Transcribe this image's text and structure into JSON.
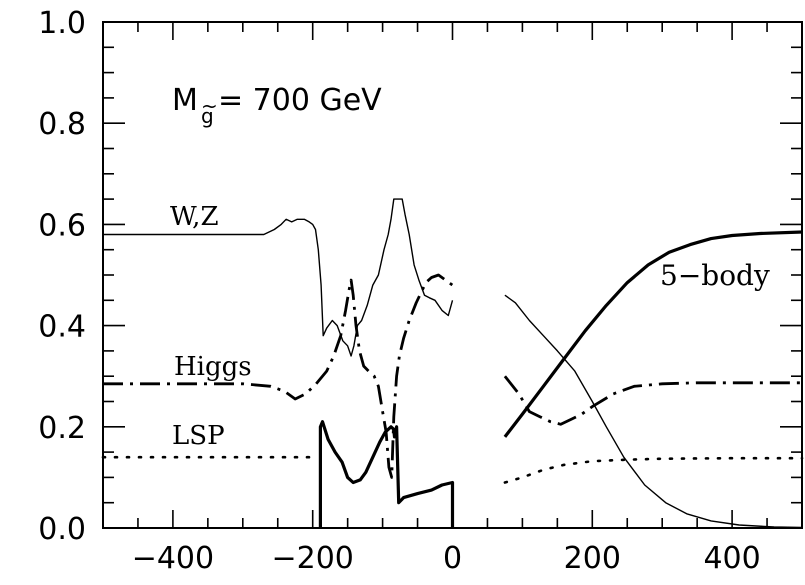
{
  "chart_data": {
    "type": "line",
    "title": "",
    "xlabel": "",
    "ylabel": "",
    "xlim": [
      -500,
      500
    ],
    "ylim": [
      0.0,
      1.0
    ],
    "x_ticks": [
      -400,
      -200,
      0,
      200,
      400
    ],
    "x_tick_labels": [
      "−400",
      "−200",
      "0",
      "200",
      "400"
    ],
    "y_ticks": [
      0.0,
      0.2,
      0.4,
      0.6,
      0.8,
      1.0
    ],
    "y_tick_labels": [
      "0.0",
      "0.2",
      "0.4",
      "0.6",
      "0.8",
      "1.0"
    ],
    "grid": false,
    "annotations": {
      "mass_label_prefix": "M",
      "mass_label_subscript": "g",
      "mass_label_tilde": "~",
      "mass_label_value": "= 700 GeV",
      "wz": "W,Z",
      "higgs": "Higgs",
      "lsp": "LSP",
      "five_body": "5−body"
    },
    "series": [
      {
        "style": "thin-solid",
        "segments": [
          [
            [
              -500,
              0.58
            ],
            [
              -400,
              0.58
            ],
            [
              -300,
              0.58
            ],
            [
              -270,
              0.58
            ],
            [
              -255,
              0.59
            ],
            [
              -245,
              0.6
            ],
            [
              -238,
              0.61
            ],
            [
              -230,
              0.605
            ],
            [
              -222,
              0.61
            ],
            [
              -212,
              0.61
            ],
            [
              -205,
              0.605
            ],
            [
              -200,
              0.6
            ],
            [
              -196,
              0.59
            ],
            [
              -192,
              0.55
            ],
            [
              -188,
              0.48
            ],
            [
              -185,
              0.38
            ],
            [
              -180,
              0.395
            ],
            [
              -172,
              0.41
            ],
            [
              -165,
              0.4
            ],
            [
              -157,
              0.37
            ],
            [
              -150,
              0.36
            ],
            [
              -145,
              0.34
            ],
            [
              -141,
              0.36
            ],
            [
              -136,
              0.4
            ],
            [
              -130,
              0.41
            ],
            [
              -122,
              0.44
            ],
            [
              -114,
              0.48
            ],
            [
              -106,
              0.5
            ],
            [
              -98,
              0.55
            ],
            [
              -92,
              0.58
            ],
            [
              -88,
              0.61
            ],
            [
              -84,
              0.65
            ],
            [
              -72,
              0.65
            ],
            [
              -68,
              0.62
            ],
            [
              -62,
              0.58
            ],
            [
              -55,
              0.52
            ],
            [
              -48,
              0.49
            ],
            [
              -40,
              0.46
            ],
            [
              -33,
              0.455
            ],
            [
              -25,
              0.45
            ],
            [
              -15,
              0.43
            ],
            [
              -6,
              0.42
            ],
            [
              0,
              0.45
            ]
          ],
          [
            [
              75,
              0.46
            ],
            [
              90,
              0.445
            ],
            [
              110,
              0.41
            ],
            [
              130,
              0.38
            ],
            [
              150,
              0.35
            ],
            [
              175,
              0.31
            ],
            [
              200,
              0.25
            ],
            [
              220,
              0.2
            ],
            [
              245,
              0.14
            ],
            [
              275,
              0.085
            ],
            [
              305,
              0.05
            ],
            [
              335,
              0.028
            ],
            [
              370,
              0.014
            ],
            [
              410,
              0.006
            ],
            [
              460,
              0.002
            ],
            [
              500,
              0.001
            ]
          ]
        ]
      },
      {
        "style": "thick-solid",
        "segments": [
          [
            [
              -189,
              0.0
            ],
            [
              -189,
              0.2
            ],
            [
              -186,
              0.21
            ],
            [
              -178,
              0.175
            ],
            [
              -168,
              0.15
            ],
            [
              -158,
              0.13
            ],
            [
              -150,
              0.1
            ],
            [
              -142,
              0.09
            ],
            [
              -132,
              0.095
            ],
            [
              -124,
              0.11
            ],
            [
              -114,
              0.14
            ],
            [
              -104,
              0.17
            ],
            [
              -96,
              0.19
            ],
            [
              -88,
              0.2
            ],
            [
              -84,
              0.195
            ],
            [
              -83,
              0.18
            ],
            [
              -80,
              0.2
            ],
            [
              -77,
              0.05
            ],
            [
              -70,
              0.06
            ],
            [
              -50,
              0.068
            ],
            [
              -30,
              0.075
            ],
            [
              -15,
              0.085
            ],
            [
              0,
              0.09
            ],
            [
              0,
              0.0
            ]
          ],
          [
            [
              75,
              0.18
            ],
            [
              100,
              0.225
            ],
            [
              130,
              0.28
            ],
            [
              160,
              0.335
            ],
            [
              190,
              0.39
            ],
            [
              220,
              0.44
            ],
            [
              250,
              0.485
            ],
            [
              280,
              0.52
            ],
            [
              310,
              0.545
            ],
            [
              340,
              0.56
            ],
            [
              370,
              0.572
            ],
            [
              400,
              0.578
            ],
            [
              440,
              0.582
            ],
            [
              500,
              0.585
            ]
          ]
        ]
      },
      {
        "style": "dash-dot",
        "segments": [
          [
            [
              -500,
              0.285
            ],
            [
              -400,
              0.285
            ],
            [
              -300,
              0.285
            ],
            [
              -260,
              0.28
            ],
            [
              -240,
              0.27
            ],
            [
              -225,
              0.255
            ],
            [
              -210,
              0.265
            ],
            [
              -195,
              0.285
            ],
            [
              -180,
              0.31
            ],
            [
              -170,
              0.34
            ],
            [
              -160,
              0.38
            ],
            [
              -153,
              0.43
            ],
            [
              -148,
              0.47
            ],
            [
              -145,
              0.49
            ],
            [
              -142,
              0.46
            ],
            [
              -138,
              0.4
            ],
            [
              -133,
              0.35
            ],
            [
              -127,
              0.32
            ],
            [
              -120,
              0.31
            ],
            [
              -112,
              0.3
            ],
            [
              -106,
              0.28
            ],
            [
              -100,
              0.23
            ],
            [
              -95,
              0.19
            ],
            [
              -91,
              0.12
            ],
            [
              -87,
              0.1
            ],
            [
              -84,
              0.22
            ],
            [
              -80,
              0.3
            ],
            [
              -76,
              0.34
            ],
            [
              -70,
              0.375
            ],
            [
              -62,
              0.41
            ],
            [
              -52,
              0.445
            ],
            [
              -45,
              0.465
            ],
            [
              -38,
              0.485
            ],
            [
              -30,
              0.495
            ],
            [
              -20,
              0.5
            ],
            [
              -10,
              0.49
            ],
            [
              0,
              0.48
            ]
          ],
          [
            [
              75,
              0.3
            ],
            [
              95,
              0.265
            ],
            [
              110,
              0.23
            ],
            [
              125,
              0.22
            ],
            [
              140,
              0.21
            ],
            [
              155,
              0.205
            ],
            [
              170,
              0.215
            ],
            [
              185,
              0.225
            ],
            [
              200,
              0.24
            ],
            [
              230,
              0.265
            ],
            [
              260,
              0.28
            ],
            [
              300,
              0.285
            ],
            [
              350,
              0.287
            ],
            [
              400,
              0.287
            ],
            [
              500,
              0.287
            ]
          ]
        ]
      },
      {
        "style": "dotted",
        "segments": [
          [
            [
              -500,
              0.14
            ],
            [
              -400,
              0.14
            ],
            [
              -300,
              0.14
            ],
            [
              -220,
              0.14
            ],
            [
              -200,
              0.14
            ]
          ],
          [
            [
              75,
              0.09
            ],
            [
              100,
              0.1
            ],
            [
              130,
              0.115
            ],
            [
              160,
              0.125
            ],
            [
              200,
              0.132
            ],
            [
              250,
              0.135
            ],
            [
              300,
              0.137
            ],
            [
              400,
              0.138
            ],
            [
              500,
              0.138
            ]
          ]
        ]
      }
    ]
  }
}
